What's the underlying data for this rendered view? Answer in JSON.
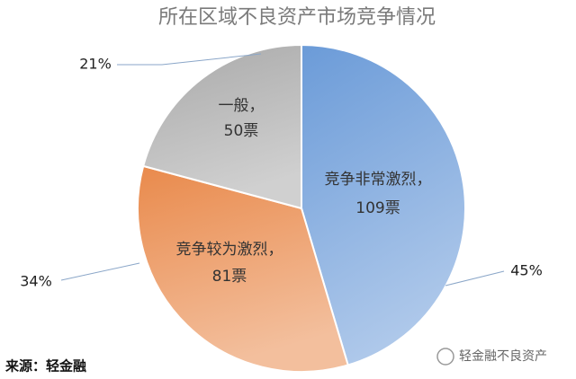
{
  "chart_data": {
    "type": "pie",
    "title": "所在区域不良资产市场竞争情况",
    "categories": [
      "竞争非常激烈，",
      "竞争较为激烈，",
      "一般，"
    ],
    "values": [
      109,
      81,
      50
    ],
    "value_labels": [
      "109票",
      "81票",
      "50票"
    ],
    "percentages": [
      45,
      34,
      21
    ],
    "percentage_labels": [
      "45%",
      "34%",
      "21%"
    ],
    "colors": [
      "#6b9bd8",
      "#e98a4c",
      "#a9a9a9"
    ],
    "source": "来源：轻金融",
    "watermark": "轻金融不良资产"
  }
}
